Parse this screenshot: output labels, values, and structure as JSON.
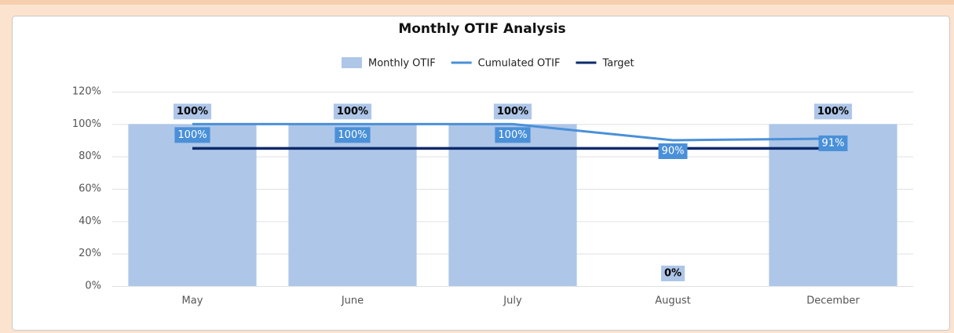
{
  "chart_data": {
    "type": "bar",
    "title": "Monthly OTIF Analysis",
    "categories": [
      "May",
      "June",
      "July",
      "August",
      "December"
    ],
    "series": [
      {
        "name": "Monthly OTIF",
        "type": "bar",
        "color": "#aec6e8",
        "values": [
          100,
          100,
          100,
          0,
          100
        ],
        "value_labels": [
          "100%",
          "100%",
          "100%",
          "0%",
          "100%"
        ]
      },
      {
        "name": "Cumulated OTIF",
        "type": "line",
        "color": "#4a90d9",
        "values": [
          100,
          100,
          100,
          90,
          91
        ],
        "value_labels": [
          "100%",
          "100%",
          "100%",
          "90%",
          "91%"
        ]
      },
      {
        "name": "Target",
        "type": "line",
        "color": "#0d2a6b",
        "values": [
          85,
          85,
          85,
          85,
          85
        ]
      }
    ],
    "ylim": [
      0,
      120
    ],
    "yticks": [
      {
        "value": 0,
        "label": "0%"
      },
      {
        "value": 20,
        "label": "20%"
      },
      {
        "value": 40,
        "label": "40%"
      },
      {
        "value": 60,
        "label": "60%"
      },
      {
        "value": 80,
        "label": "80%"
      },
      {
        "value": 100,
        "label": "100%"
      },
      {
        "value": 120,
        "label": "120%"
      }
    ],
    "grid": true,
    "legend": "top"
  }
}
